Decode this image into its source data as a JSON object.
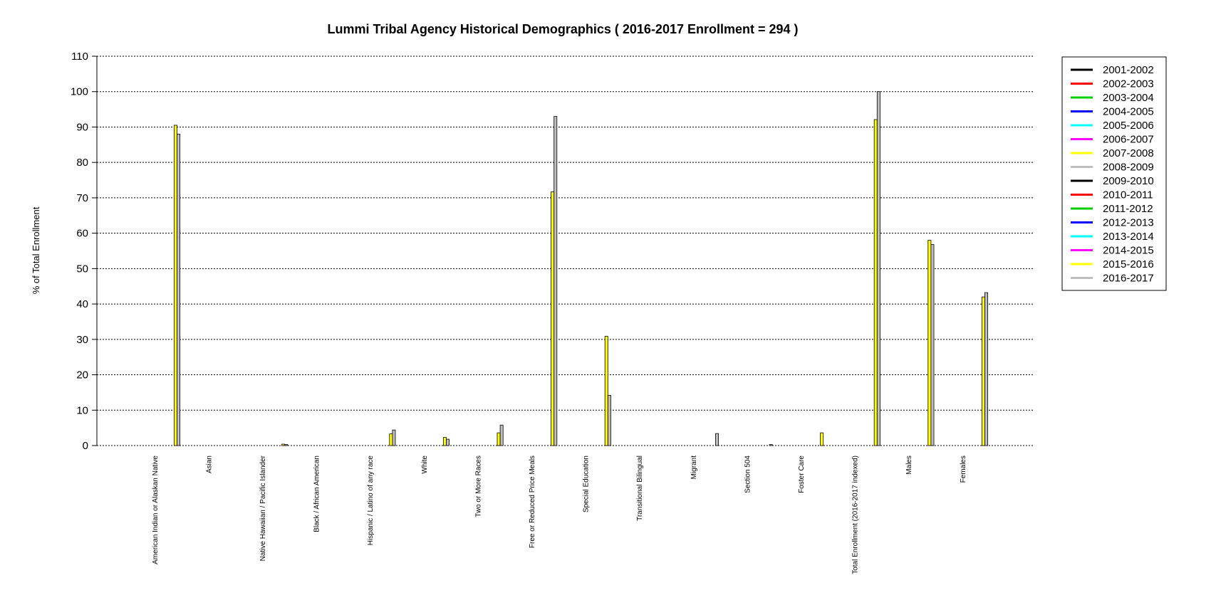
{
  "chart_data": {
    "type": "bar",
    "title": "Lummi Tribal Agency Historical Demographics  ( 2016-2017 Enrollment =  294 )",
    "xlabel": "",
    "ylabel": "% of Total Enrollment",
    "ylim": [
      0,
      110
    ],
    "yticks": [
      "0",
      "10",
      "20",
      "30",
      "40",
      "50",
      "60",
      "70",
      "80",
      "90",
      "100",
      "110"
    ],
    "grid": true,
    "legend_position": "right",
    "categories": [
      "American Indian or Alaskan Native",
      "Asian",
      "Native Hawaiian / Pacific Islander",
      "Black / African American",
      "Hispanic / Latino of any race",
      "White",
      "Two or More Races",
      "Free or Reduced Price Meals",
      "Special Education",
      "Transitional Bilingual",
      "Migrant",
      "Section 504",
      "Foster Care",
      "Total Enrollment (2016-2017 indexed)",
      "Males",
      "Females"
    ],
    "series": [
      {
        "name": "2001-2002",
        "color": "#000000",
        "values": [
          0,
          0,
          0,
          0,
          0,
          0,
          0,
          0,
          0,
          0,
          0,
          0,
          0,
          0,
          0,
          0
        ]
      },
      {
        "name": "2002-2003",
        "color": "#ff0000",
        "values": [
          0,
          0,
          0,
          0,
          0,
          0,
          0,
          0,
          0,
          0,
          0,
          0,
          0,
          0,
          0,
          0
        ]
      },
      {
        "name": "2003-2004",
        "color": "#00cd00",
        "values": [
          0,
          0,
          0,
          0,
          0,
          0,
          0,
          0,
          0,
          0,
          0,
          0,
          0,
          0,
          0,
          0
        ]
      },
      {
        "name": "2004-2005",
        "color": "#0000ff",
        "values": [
          0,
          0,
          0,
          0,
          0,
          0,
          0,
          0,
          0,
          0,
          0,
          0,
          0,
          0,
          0,
          0
        ]
      },
      {
        "name": "2005-2006",
        "color": "#00ffff",
        "values": [
          0,
          0,
          0,
          0,
          0,
          0,
          0,
          0,
          0,
          0,
          0,
          0,
          0,
          0,
          0,
          0
        ]
      },
      {
        "name": "2006-2007",
        "color": "#ff00ff",
        "values": [
          0,
          0,
          0,
          0,
          0,
          0,
          0,
          0,
          0,
          0,
          0,
          0,
          0,
          0,
          0,
          0
        ]
      },
      {
        "name": "2007-2008",
        "color": "#ffff00",
        "values": [
          0,
          0,
          0,
          0,
          0,
          0,
          0,
          0,
          0,
          0,
          0,
          0,
          0,
          0,
          0,
          0
        ]
      },
      {
        "name": "2008-2009",
        "color": "#bebebe",
        "values": [
          0,
          0,
          0,
          0,
          0,
          0,
          0,
          0,
          0,
          0,
          0,
          0,
          0,
          0,
          0,
          0
        ]
      },
      {
        "name": "2009-2010",
        "color": "#000000",
        "values": [
          0,
          0,
          0,
          0,
          0,
          0,
          0,
          0,
          0,
          0,
          0,
          0,
          0,
          0,
          0,
          0
        ]
      },
      {
        "name": "2010-2011",
        "color": "#ff0000",
        "values": [
          0,
          0,
          0,
          0,
          0,
          0,
          0,
          0,
          0,
          0,
          0,
          0,
          0,
          0,
          0,
          0
        ]
      },
      {
        "name": "2011-2012",
        "color": "#00cd00",
        "values": [
          0,
          0,
          0,
          0,
          0,
          0,
          0,
          0,
          0,
          0,
          0,
          0,
          0,
          0,
          0,
          0
        ]
      },
      {
        "name": "2012-2013",
        "color": "#0000ff",
        "values": [
          0,
          0,
          0,
          0,
          0,
          0,
          0,
          0,
          0,
          0,
          0,
          0,
          0,
          0,
          0,
          0
        ]
      },
      {
        "name": "2013-2014",
        "color": "#00ffff",
        "values": [
          0,
          0,
          0,
          0,
          0,
          0,
          0,
          0,
          0,
          0,
          0,
          0,
          0,
          0,
          0,
          0
        ]
      },
      {
        "name": "2014-2015",
        "color": "#ff00ff",
        "values": [
          0,
          0,
          0,
          0,
          0,
          0,
          0,
          0,
          0,
          0,
          0,
          0,
          0,
          0,
          0,
          0
        ]
      },
      {
        "name": "2015-2016",
        "color": "#ffff00",
        "values": [
          90.5,
          0,
          0.4,
          0,
          3.3,
          2.3,
          3.6,
          71.7,
          30.9,
          0,
          0,
          0,
          3.6,
          92.1,
          58.0,
          42.0
        ]
      },
      {
        "name": "2016-2017",
        "color": "#bebebe",
        "values": [
          88.0,
          0,
          0.3,
          0,
          4.4,
          1.8,
          5.8,
          93.0,
          14.2,
          0,
          3.4,
          0.3,
          0,
          100,
          56.8,
          43.2
        ]
      }
    ]
  }
}
